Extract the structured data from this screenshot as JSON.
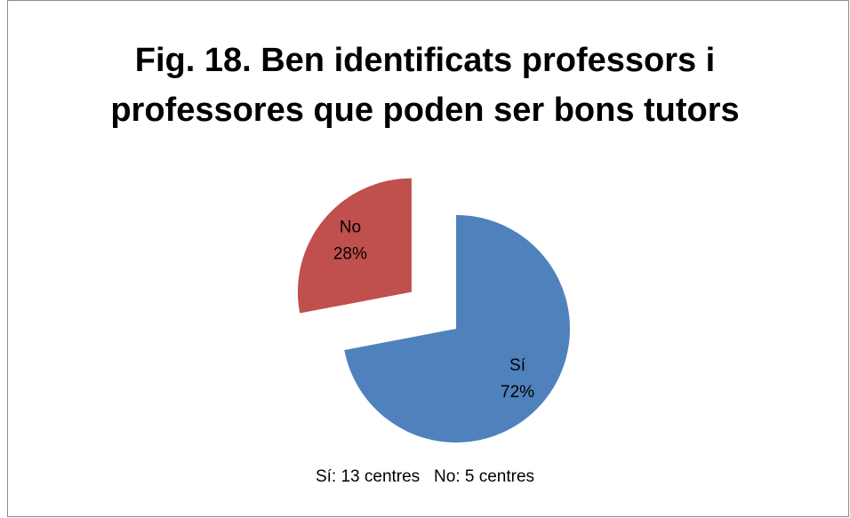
{
  "chart_data": {
    "type": "pie",
    "title": "Fig. 18. Ben identificats professors i professores que poden ser bons tutors",
    "categories": [
      "Sí",
      "No"
    ],
    "values": [
      72,
      28
    ],
    "value_labels": [
      "72%",
      "28%"
    ],
    "colors": [
      "#4f81bd",
      "#c0504d"
    ],
    "exploded": [
      false,
      true
    ],
    "annotation": "Sí: 13 centres   No: 5 centres"
  }
}
